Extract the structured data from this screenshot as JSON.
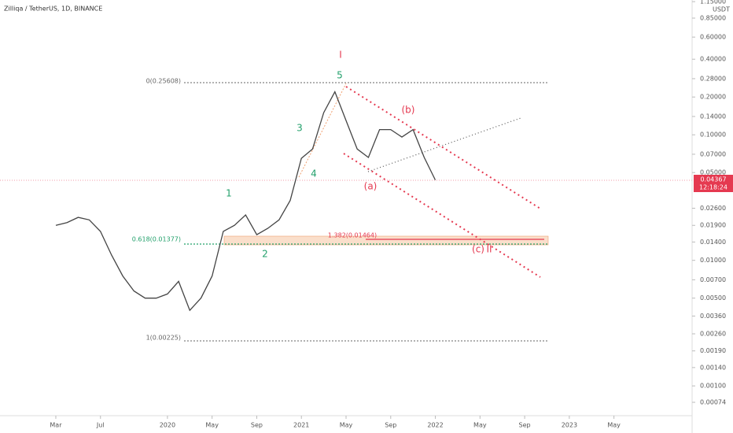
{
  "chart_data": {
    "type": "line",
    "title": "Zilliqa / TetherUS, 1D, BINANCE",
    "currency": "USDT",
    "price_label": "0.04367",
    "countdown": "12:18:24",
    "log_scale": true,
    "x": [
      "2019-03",
      "2019-04",
      "2019-05",
      "2019-06",
      "2019-07",
      "2019-08",
      "2019-09",
      "2019-10",
      "2019-11",
      "2019-12",
      "2020-01",
      "2020-02",
      "2020-03",
      "2020-04",
      "2020-05",
      "2020-06",
      "2020-07",
      "2020-08",
      "2020-09",
      "2020-10",
      "2020-11",
      "2020-12",
      "2021-01",
      "2021-02",
      "2021-03",
      "2021-04",
      "2021-05",
      "2021-06",
      "2021-07",
      "2021-08",
      "2021-09",
      "2021-10",
      "2021-11",
      "2021-12",
      "2022-01"
    ],
    "series": [
      {
        "name": "ZILUSDT",
        "color": "#444444",
        "values": [
          0.019,
          0.02,
          0.022,
          0.021,
          0.017,
          0.011,
          0.0075,
          0.0057,
          0.005,
          0.005,
          0.0054,
          0.0068,
          0.004,
          0.005,
          0.0075,
          0.017,
          0.019,
          0.023,
          0.016,
          0.018,
          0.021,
          0.03,
          0.065,
          0.077,
          0.15,
          0.22,
          0.13,
          0.077,
          0.066,
          0.11,
          0.11,
          0.096,
          0.11,
          0.066,
          0.04367
        ]
      }
    ],
    "xlim": [
      "2018-10",
      "2023-12"
    ],
    "xticks": [
      {
        "value": "2019-03",
        "label": "Mar"
      },
      {
        "value": "2019-07",
        "label": "Jul"
      },
      {
        "value": "2020-01",
        "label": "2020"
      },
      {
        "value": "2020-05",
        "label": "May"
      },
      {
        "value": "2020-09",
        "label": "Sep"
      },
      {
        "value": "2021-01",
        "label": "2021"
      },
      {
        "value": "2021-05",
        "label": "May"
      },
      {
        "value": "2021-09",
        "label": "Sep"
      },
      {
        "value": "2022-01",
        "label": "2022"
      },
      {
        "value": "2022-05",
        "label": "May"
      },
      {
        "value": "2022-09",
        "label": "Sep"
      },
      {
        "value": "2023-01",
        "label": "2023"
      },
      {
        "value": "2023-05",
        "label": "May"
      }
    ],
    "ylim": [
      0.00065,
      1.185
    ],
    "yticks": [
      {
        "value": 1.15,
        "label": "1.15000"
      },
      {
        "value": 0.85,
        "label": "0.85000"
      },
      {
        "value": 0.6,
        "label": "0.60000"
      },
      {
        "value": 0.4,
        "label": "0.40000"
      },
      {
        "value": 0.28,
        "label": "0.28000"
      },
      {
        "value": 0.2,
        "label": "0.20000"
      },
      {
        "value": 0.14,
        "label": "0.14000"
      },
      {
        "value": 0.1,
        "label": "0.10000"
      },
      {
        "value": 0.07,
        "label": "0.07000"
      },
      {
        "value": 0.05,
        "label": "0.05000"
      },
      {
        "value": 0.026,
        "label": "0.02600"
      },
      {
        "value": 0.019,
        "label": "0.01900"
      },
      {
        "value": 0.014,
        "label": "0.01400"
      },
      {
        "value": 0.01,
        "label": "0.01000"
      },
      {
        "value": 0.007,
        "label": "0.00700"
      },
      {
        "value": 0.005,
        "label": "0.00500"
      },
      {
        "value": 0.0036,
        "label": "0.00360"
      },
      {
        "value": 0.0026,
        "label": "0.00260"
      },
      {
        "value": 0.0019,
        "label": "0.00190"
      },
      {
        "value": 0.0014,
        "label": "0.00140"
      },
      {
        "value": 0.001,
        "label": "0.00100"
      },
      {
        "value": 0.00074,
        "label": "0.00074"
      }
    ],
    "annotations": [
      "I",
      "5",
      "3",
      "4",
      "1",
      "2",
      "(b)",
      "(a)",
      "(c)",
      "II",
      "0(0.25608)",
      "0.618(0.01377)",
      "1(0.00225)",
      "1.382(0.01464)"
    ]
  }
}
